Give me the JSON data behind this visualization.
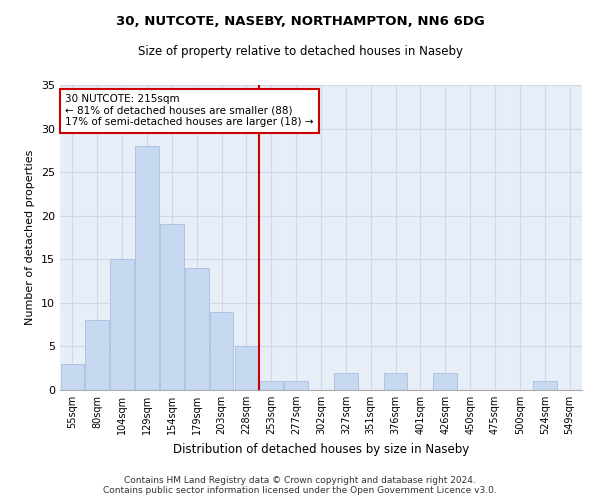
{
  "title1": "30, NUTCOTE, NASEBY, NORTHAMPTON, NN6 6DG",
  "title2": "Size of property relative to detached houses in Naseby",
  "xlabel": "Distribution of detached houses by size in Naseby",
  "ylabel": "Number of detached properties",
  "categories": [
    "55sqm",
    "80sqm",
    "104sqm",
    "129sqm",
    "154sqm",
    "179sqm",
    "203sqm",
    "228sqm",
    "253sqm",
    "277sqm",
    "302sqm",
    "327sqm",
    "351sqm",
    "376sqm",
    "401sqm",
    "426sqm",
    "450sqm",
    "475sqm",
    "500sqm",
    "524sqm",
    "549sqm"
  ],
  "values": [
    3,
    8,
    15,
    28,
    19,
    14,
    9,
    5,
    1,
    1,
    0,
    2,
    0,
    2,
    0,
    2,
    0,
    0,
    0,
    1,
    0
  ],
  "bar_color": "#c6d9f0",
  "bar_edge_color": "#a0b8d8",
  "grid_color": "#d0d8e8",
  "bg_color": "#e8eef8",
  "vline_x": 7.5,
  "vline_color": "#cc0000",
  "annotation_line1": "30 NUTCOTE: 215sqm",
  "annotation_line2": "← 81% of detached houses are smaller (88)",
  "annotation_line3": "17% of semi-detached houses are larger (18) →",
  "annotation_box_color": "#cc0000",
  "ylim": [
    0,
    35
  ],
  "yticks": [
    0,
    5,
    10,
    15,
    20,
    25,
    30,
    35
  ],
  "footnote": "Contains HM Land Registry data © Crown copyright and database right 2024.\nContains public sector information licensed under the Open Government Licence v3.0."
}
